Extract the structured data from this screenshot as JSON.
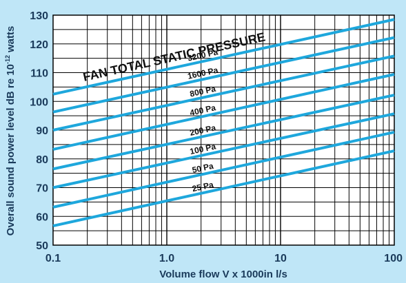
{
  "chart_data": {
    "type": "line",
    "x_scale": "log",
    "xlim": [
      0.1,
      100
    ],
    "ylim": [
      50,
      130
    ],
    "xlabel": "Volume flow V x 1000in l/s",
    "ylabel": "Overall sound power level dB re 10",
    "ylabel_sup": "-12",
    "ylabel_tail": "watts",
    "x_ticks": [
      "0.1",
      "1.0",
      "10",
      "100"
    ],
    "y_ticks": [
      "50",
      "60",
      "70",
      "80",
      "90",
      "100",
      "110",
      "120",
      "130"
    ],
    "annotation": "FAN TOTAL STATIC PRESSURE",
    "grid": true,
    "line_color": "#1ea7dc",
    "series": [
      {
        "name": "3200 Pa",
        "x": [
          0.1,
          100
        ],
        "y": [
          102.5,
          128.5
        ]
      },
      {
        "name": "1600 Pa",
        "x": [
          0.1,
          100
        ],
        "y": [
          96.3,
          122.2
        ]
      },
      {
        "name": "800 Pa",
        "x": [
          0.1,
          100
        ],
        "y": [
          90.0,
          115.8
        ]
      },
      {
        "name": "400 Pa",
        "x": [
          0.1,
          100
        ],
        "y": [
          83.3,
          109.4
        ]
      },
      {
        "name": "200 Pa",
        "x": [
          0.1,
          100
        ],
        "y": [
          76.5,
          102.2
        ]
      },
      {
        "name": "100 Pa",
        "x": [
          0.1,
          100
        ],
        "y": [
          70.0,
          95.7
        ]
      },
      {
        "name": "50 Pa",
        "x": [
          0.1,
          100
        ],
        "y": [
          63.2,
          89.3
        ]
      },
      {
        "name": "25 Pa",
        "x": [
          0.1,
          100
        ],
        "y": [
          56.7,
          82.8
        ]
      }
    ]
  }
}
